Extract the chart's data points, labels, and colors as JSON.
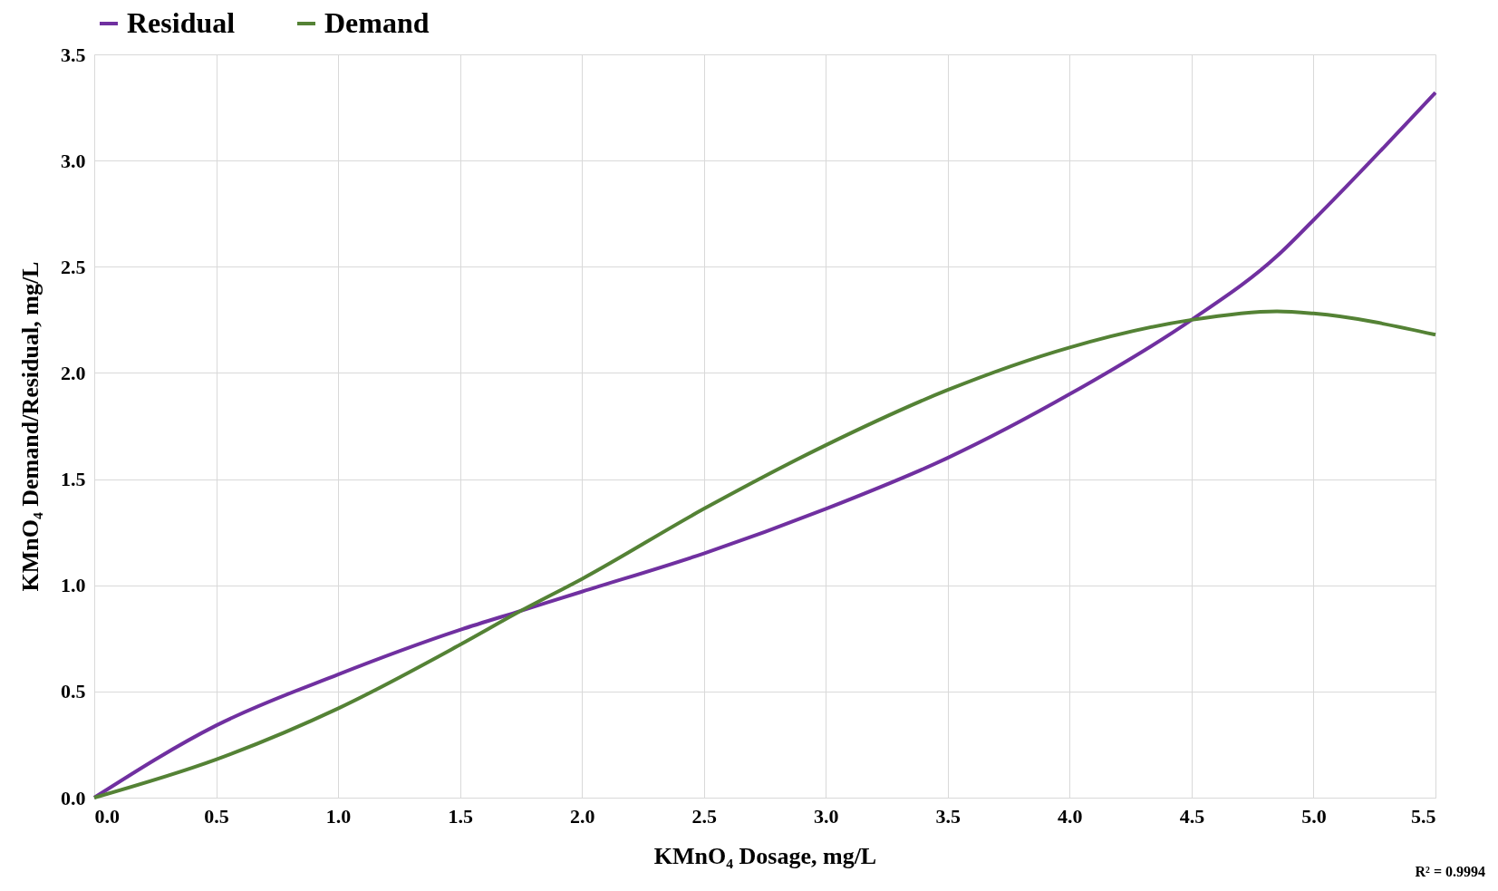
{
  "chart_data": {
    "type": "line",
    "xlabel": "KMnO₄ Dosage, mg/L",
    "ylabel": "KMnO₄ Demand/Residual, mg/L",
    "x": [
      0,
      0.5,
      1,
      1.5,
      1.75,
      2,
      2.5,
      3,
      3.5,
      4,
      4.5,
      4.85,
      5,
      5.5
    ],
    "series": [
      {
        "name": "Residual",
        "color": "#7030a0",
        "values": [
          0,
          0.34,
          0.58,
          0.79,
          0.88,
          0.97,
          1.15,
          1.36,
          1.6,
          1.9,
          2.25,
          2.55,
          2.72,
          3.32
        ]
      },
      {
        "name": "Demand",
        "color": "#548235",
        "values": [
          0,
          0.18,
          0.42,
          0.72,
          0.88,
          1.03,
          1.36,
          1.66,
          1.92,
          2.12,
          2.25,
          2.29,
          2.28,
          2.18
        ]
      }
    ],
    "xlim": [
      0,
      5.5
    ],
    "xticks": [
      {
        "value": 0,
        "label": "0.0"
      },
      0.5,
      {
        "value": 1,
        "label": "1.0"
      },
      1.5,
      {
        "value": 2,
        "label": "2.0"
      },
      2.5,
      {
        "value": 3,
        "label": "3.0"
      },
      3.5,
      {
        "value": 4,
        "label": "4.0"
      },
      4.5,
      {
        "value": 5,
        "label": "5.0"
      },
      5.5
    ],
    "ylim": [
      0,
      3.5
    ],
    "yticks": [
      {
        "value": 0,
        "label": "0.0"
      },
      0.5,
      {
        "value": 1,
        "label": "1.0"
      },
      1.5,
      {
        "value": 2,
        "label": "2.0"
      },
      2.5,
      {
        "value": 3,
        "label": "3.0"
      },
      3.5
    ],
    "grid": true,
    "legend": "top",
    "marker": "none",
    "line_style": "solid",
    "annotations": [
      "R² = 0.9994"
    ]
  }
}
